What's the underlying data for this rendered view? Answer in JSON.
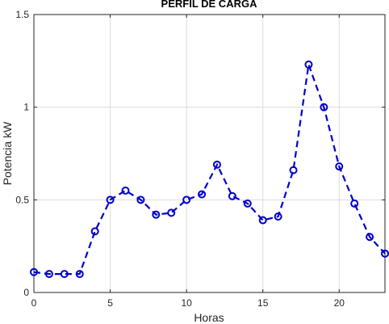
{
  "chart_data": {
    "type": "line",
    "title": "PERFIL DE CARGA",
    "xlabel": "Horas",
    "ylabel": "Potencia kW",
    "xlim": [
      0,
      23
    ],
    "ylim": [
      0,
      1.5
    ],
    "xticks": [
      0,
      5,
      10,
      15,
      20
    ],
    "yticks": [
      0,
      0.5,
      1,
      1.5
    ],
    "xtick_labels": [
      "0",
      "5",
      "10",
      "15",
      "20"
    ],
    "ytick_labels": [
      "0",
      "0.5",
      "1",
      "1.5"
    ],
    "grid": true,
    "line_color": "#0000CC",
    "line_style": "dashed",
    "marker": "circle",
    "x": [
      0,
      1,
      2,
      3,
      4,
      5,
      6,
      7,
      8,
      9,
      10,
      11,
      12,
      13,
      14,
      15,
      16,
      17,
      18,
      19,
      20,
      21,
      22,
      23
    ],
    "y": [
      0.11,
      0.1,
      0.1,
      0.1,
      0.33,
      0.5,
      0.55,
      0.5,
      0.42,
      0.43,
      0.5,
      0.53,
      0.69,
      0.52,
      0.48,
      0.39,
      0.41,
      0.66,
      1.23,
      1.0,
      0.68,
      0.48,
      0.3,
      0.21
    ]
  }
}
